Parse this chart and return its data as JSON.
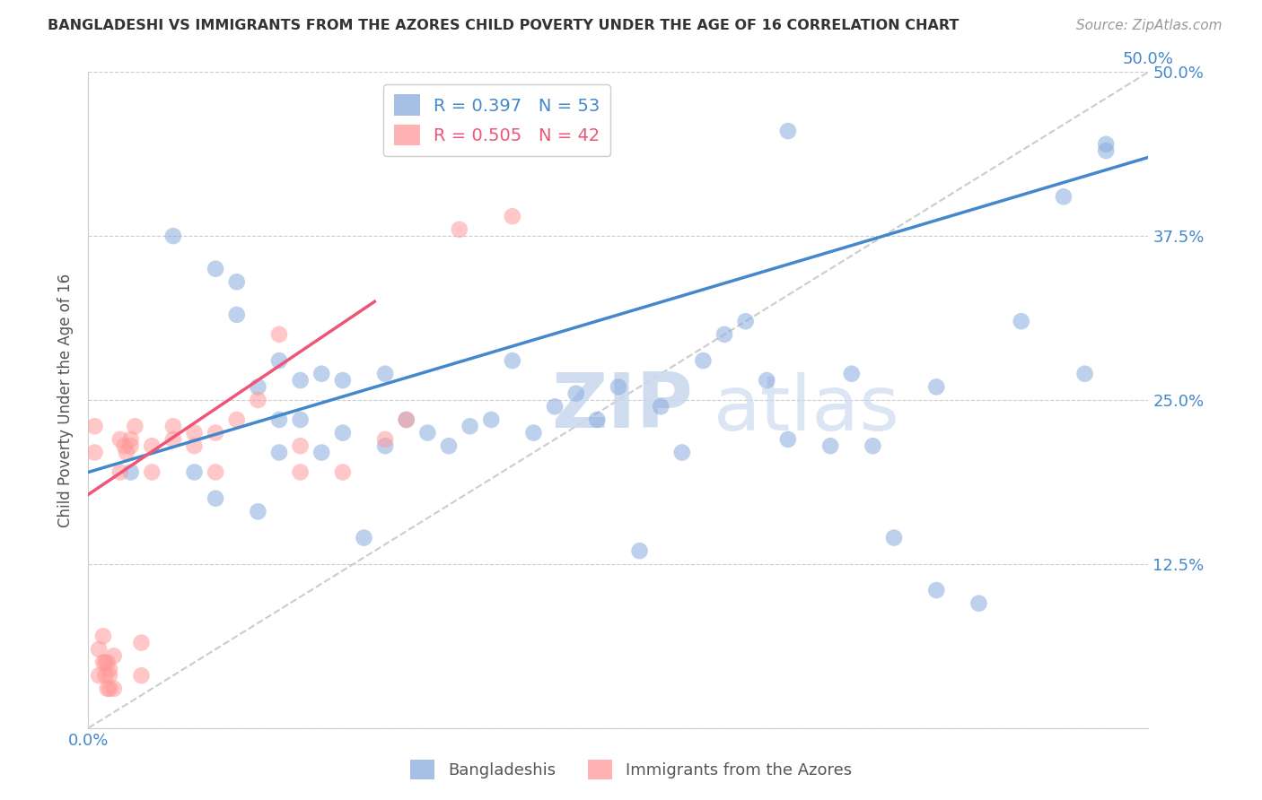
{
  "title": "BANGLADESHI VS IMMIGRANTS FROM THE AZORES CHILD POVERTY UNDER THE AGE OF 16 CORRELATION CHART",
  "source": "Source: ZipAtlas.com",
  "ylabel": "Child Poverty Under the Age of 16",
  "xlim": [
    0.0,
    0.5
  ],
  "ylim": [
    0.0,
    0.5
  ],
  "blue_R": 0.397,
  "blue_N": 53,
  "pink_R": 0.505,
  "pink_N": 42,
  "legend_label_blue": "Bangladeshis",
  "legend_label_pink": "Immigrants from the Azores",
  "blue_color": "#88AADD",
  "pink_color": "#FF9999",
  "blue_line_color": "#4488CC",
  "pink_line_color": "#EE5577",
  "diagonal_color": "#CCCCCC",
  "watermark_zip": "ZIP",
  "watermark_atlas": "atlas",
  "blue_line_x": [
    0.0,
    0.5
  ],
  "blue_line_y": [
    0.195,
    0.435
  ],
  "pink_line_x": [
    0.0,
    0.135
  ],
  "pink_line_y": [
    0.178,
    0.325
  ],
  "blue_scatter_x": [
    0.02,
    0.04,
    0.05,
    0.06,
    0.06,
    0.07,
    0.07,
    0.08,
    0.08,
    0.09,
    0.09,
    0.09,
    0.1,
    0.1,
    0.11,
    0.11,
    0.12,
    0.12,
    0.13,
    0.14,
    0.14,
    0.15,
    0.16,
    0.17,
    0.18,
    0.19,
    0.2,
    0.21,
    0.22,
    0.23,
    0.24,
    0.25,
    0.26,
    0.27,
    0.28,
    0.29,
    0.3,
    0.31,
    0.32,
    0.33,
    0.35,
    0.36,
    0.37,
    0.38,
    0.4,
    0.42,
    0.44,
    0.46,
    0.47,
    0.48,
    0.33,
    0.4,
    0.48
  ],
  "blue_scatter_y": [
    0.195,
    0.375,
    0.195,
    0.175,
    0.35,
    0.315,
    0.34,
    0.165,
    0.26,
    0.28,
    0.235,
    0.21,
    0.235,
    0.265,
    0.21,
    0.27,
    0.225,
    0.265,
    0.145,
    0.27,
    0.215,
    0.235,
    0.225,
    0.215,
    0.23,
    0.235,
    0.28,
    0.225,
    0.245,
    0.255,
    0.235,
    0.26,
    0.135,
    0.245,
    0.21,
    0.28,
    0.3,
    0.31,
    0.265,
    0.455,
    0.215,
    0.27,
    0.215,
    0.145,
    0.105,
    0.095,
    0.31,
    0.405,
    0.27,
    0.445,
    0.22,
    0.26,
    0.44
  ],
  "pink_scatter_x": [
    0.003,
    0.003,
    0.005,
    0.005,
    0.007,
    0.007,
    0.008,
    0.008,
    0.009,
    0.009,
    0.01,
    0.01,
    0.01,
    0.012,
    0.012,
    0.015,
    0.015,
    0.017,
    0.018,
    0.02,
    0.02,
    0.022,
    0.025,
    0.025,
    0.03,
    0.03,
    0.04,
    0.04,
    0.05,
    0.05,
    0.06,
    0.06,
    0.07,
    0.08,
    0.09,
    0.1,
    0.1,
    0.12,
    0.14,
    0.15,
    0.175,
    0.2
  ],
  "pink_scatter_y": [
    0.21,
    0.23,
    0.04,
    0.06,
    0.05,
    0.07,
    0.04,
    0.05,
    0.03,
    0.05,
    0.04,
    0.03,
    0.045,
    0.03,
    0.055,
    0.195,
    0.22,
    0.215,
    0.21,
    0.22,
    0.215,
    0.23,
    0.04,
    0.065,
    0.195,
    0.215,
    0.22,
    0.23,
    0.215,
    0.225,
    0.195,
    0.225,
    0.235,
    0.25,
    0.3,
    0.195,
    0.215,
    0.195,
    0.22,
    0.235,
    0.38,
    0.39
  ]
}
